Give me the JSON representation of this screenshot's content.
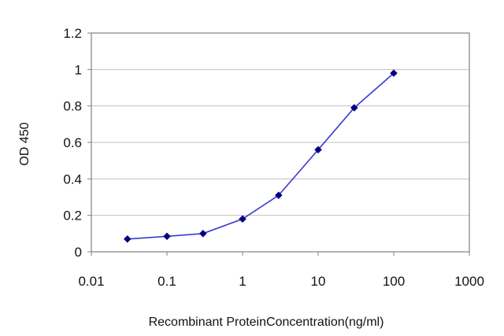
{
  "chart_data": {
    "type": "line",
    "title": "",
    "xlabel": "Recombinant ProteinConcentration(ng/ml)",
    "ylabel": "OD 450",
    "x_scale": "log",
    "xlim": [
      0.01,
      1000
    ],
    "ylim": [
      0,
      1.2
    ],
    "x_ticks": [
      "0.01",
      "0.1",
      "1",
      "10",
      "100",
      "1000"
    ],
    "y_ticks": [
      "0",
      "0.2",
      "0.4",
      "0.6",
      "0.8",
      "1",
      "1.2"
    ],
    "grid": "horizontal",
    "legend": "none",
    "series": [
      {
        "x": [
          0.03,
          0.1,
          0.3,
          1,
          3,
          10,
          30,
          100
        ],
        "y": [
          0.07,
          0.085,
          0.1,
          0.18,
          0.31,
          0.56,
          0.79,
          0.98
        ],
        "color": "#000080"
      }
    ],
    "colors": {
      "line": "#3a3ad0",
      "marker": "#000080",
      "grid": "#c0c0c0",
      "axis": "#808080"
    }
  }
}
